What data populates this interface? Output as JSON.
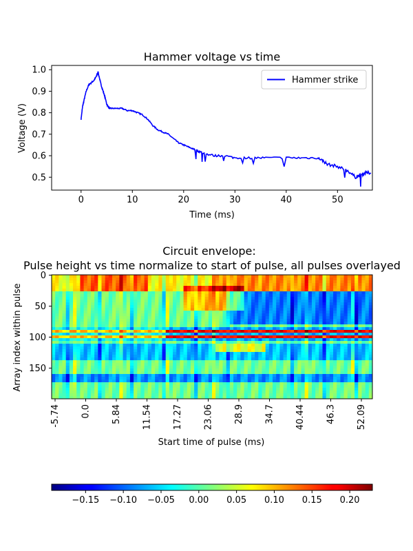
{
  "chart_data": [
    {
      "type": "line",
      "title": "Hammer voltage vs time",
      "xlabel": "Time (ms)",
      "ylabel": "Voltage (V)",
      "xlim": [
        -5.74,
        56.8
      ],
      "ylim": [
        0.44,
        1.02
      ],
      "xticks": [
        0,
        10,
        20,
        30,
        40,
        50
      ],
      "yticks": [
        0.5,
        0.6,
        0.7,
        0.8,
        0.9,
        1.0
      ],
      "legend": "upper right",
      "series": [
        {
          "name": "Hammer strike",
          "color": "#0000ff",
          "x": [
            0,
            0.3,
            0.6,
            1.0,
            1.5,
            2.0,
            2.5,
            3.0,
            3.3,
            3.6,
            3.9,
            4.3,
            4.7,
            5.0,
            5.5,
            6.0,
            7.0,
            8.0,
            9.0,
            10.0,
            11.0,
            12.0,
            13.0,
            14.0,
            15.0,
            16.0,
            17.0,
            18.0,
            19.0,
            20.0,
            21.0,
            22.0,
            23.0,
            24.0,
            26.0,
            28.0,
            30.0,
            33.0,
            36.0,
            40.0,
            43.0,
            46.0,
            47.0,
            48.0,
            50.0,
            52.0,
            53.5,
            54.5,
            55.5,
            56.5
          ],
          "y": [
            0.77,
            0.83,
            0.86,
            0.9,
            0.93,
            0.94,
            0.95,
            0.97,
            0.99,
            0.96,
            0.93,
            0.9,
            0.87,
            0.84,
            0.82,
            0.82,
            0.82,
            0.82,
            0.81,
            0.81,
            0.8,
            0.79,
            0.77,
            0.74,
            0.72,
            0.71,
            0.7,
            0.68,
            0.66,
            0.65,
            0.64,
            0.63,
            0.62,
            0.61,
            0.6,
            0.6,
            0.59,
            0.59,
            0.59,
            0.59,
            0.59,
            0.59,
            0.58,
            0.56,
            0.55,
            0.53,
            0.5,
            0.51,
            0.52,
            0.52
          ]
        }
      ]
    },
    {
      "type": "heatmap",
      "title": "Circuit envelope:",
      "subtitle": "Pulse height vs time normalize to start of pulse, all pulses overlayed",
      "xlabel": "Start time of pulse (ms)",
      "ylabel": "Array index within pulse",
      "xtick_labels": [
        "-5.74",
        "0.0",
        "5.84",
        "11.54",
        "17.27",
        "23.06",
        "28.9",
        "34.7",
        "40.44",
        "46.3",
        "52.09"
      ],
      "ytick_labels": [
        "0",
        "50",
        "100",
        "150"
      ],
      "ylim": [
        0,
        199
      ],
      "colormap": "jet",
      "colorbar": {
        "min": -0.195,
        "max": 0.23,
        "ticks": [
          -0.15,
          -0.1,
          -0.05,
          0.0,
          0.05,
          0.1,
          0.15,
          0.2
        ],
        "tick_labels": [
          "−0.15",
          "−0.10",
          "−0.05",
          "0.00",
          "0.05",
          "0.10",
          "0.15",
          "0.20"
        ],
        "orientation": "horizontal"
      }
    }
  ]
}
